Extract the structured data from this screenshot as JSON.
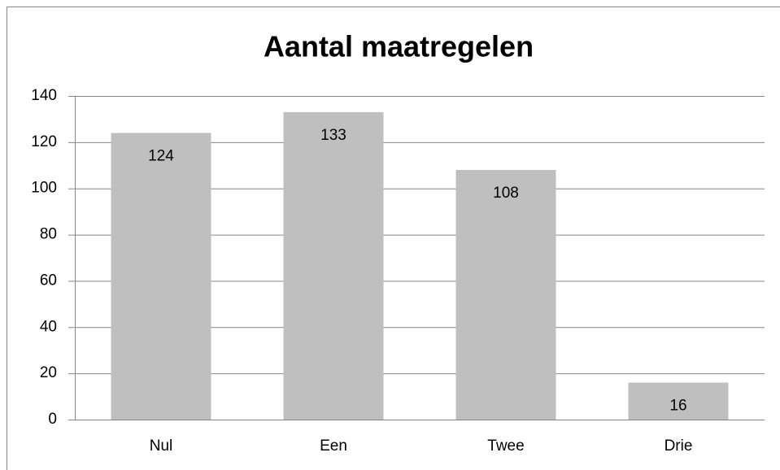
{
  "chart_data": {
    "type": "bar",
    "title": "Aantal maatregelen",
    "categories": [
      "Nul",
      "Een",
      "Twee",
      "Drie"
    ],
    "values": [
      124,
      133,
      108,
      16
    ],
    "color": "#bfbfbf",
    "ylim": [
      0,
      140
    ],
    "yticks": [
      0,
      20,
      40,
      60,
      80,
      100,
      120,
      140
    ],
    "grid": true
  }
}
